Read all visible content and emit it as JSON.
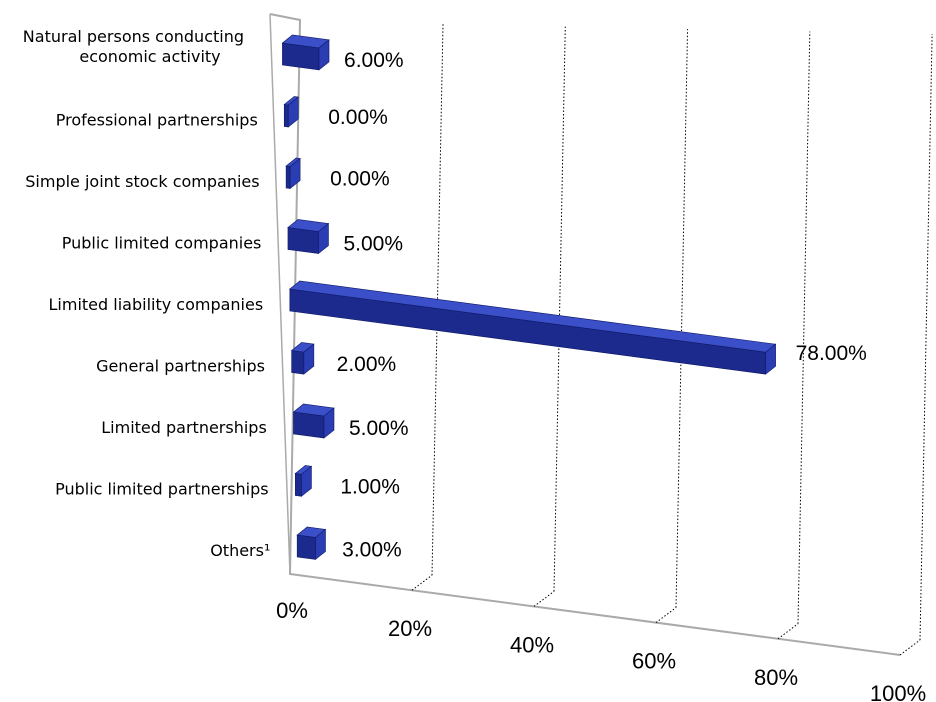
{
  "chart_data": {
    "type": "bar",
    "orientation": "horizontal",
    "style": "3d",
    "categories": [
      "Natural persons conducting economic activity",
      "Professional partnerships",
      "Simple joint stock companies",
      "Public limited companies",
      "Limited liability companies",
      "General partnerships",
      "Limited partnerships",
      "Public limited partnerships",
      "Others¹"
    ],
    "category_lines": [
      [
        "Natural persons conducting",
        "economic activity"
      ],
      [
        "Professional partnerships"
      ],
      [
        "Simple joint stock companies"
      ],
      [
        "Public limited companies"
      ],
      [
        "Limited liability companies"
      ],
      [
        "General partnerships"
      ],
      [
        "Limited partnerships"
      ],
      [
        "Public limited partnerships"
      ],
      [
        "Others¹"
      ]
    ],
    "values": [
      6,
      0,
      0,
      5,
      78,
      2,
      5,
      1,
      3
    ],
    "value_labels": [
      "6.00%",
      "0.00%",
      "0.00%",
      "5.00%",
      "78.00%",
      "2.00%",
      "5.00%",
      "1.00%",
      "3.00%"
    ],
    "x_ticks": [
      "0%",
      "20%",
      "40%",
      "60%",
      "80%",
      "100%"
    ],
    "xlim": [
      0,
      100
    ],
    "grid": true,
    "legend": "none",
    "bar_color": "#1b2a8c",
    "bar_side_color": "#2a3db3",
    "bar_top_color": "#3a4fc8",
    "axis_color": "#aaaaaa",
    "grid_color": "#000000"
  }
}
